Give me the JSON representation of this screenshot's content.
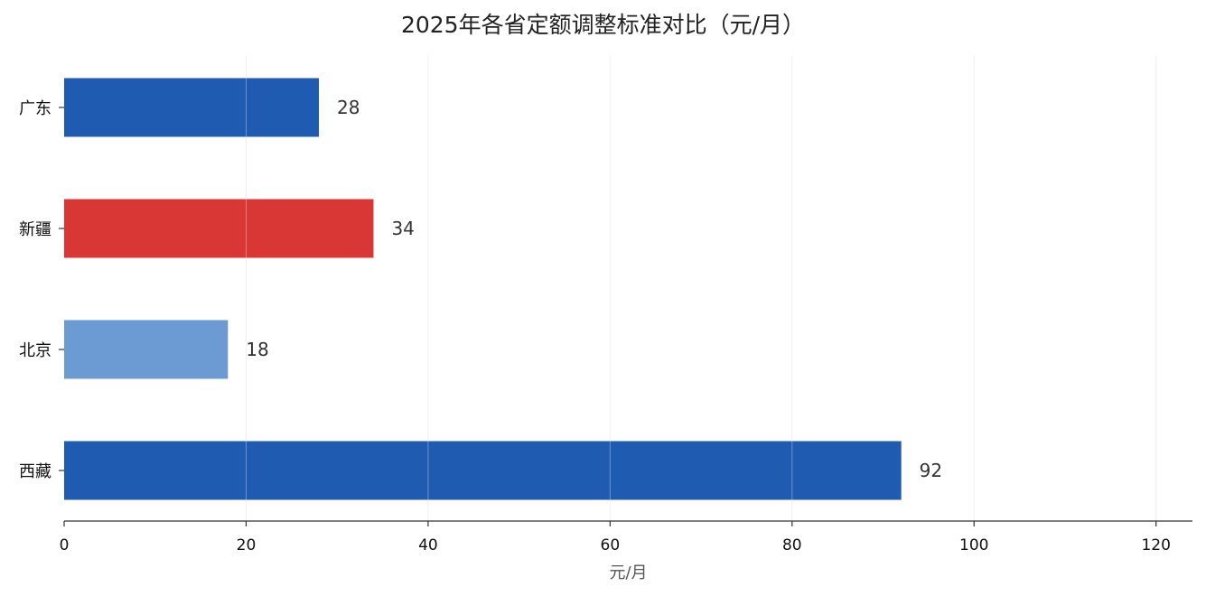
{
  "chart_data": {
    "type": "bar",
    "orientation": "horizontal",
    "title": "2025年各省定额调整标准对比（元/月）",
    "xlabel": "元/月",
    "ylabel": "",
    "categories": [
      "广东",
      "新疆",
      "北京",
      "西藏"
    ],
    "values": [
      28,
      34,
      18,
      92
    ],
    "value_labels": [
      "28",
      "34",
      "18",
      "92"
    ],
    "colors": [
      "#1f5bb0",
      "#d93636",
      "#6c9bd4",
      "#1f5bb0"
    ],
    "xlim": [
      0,
      124
    ],
    "xticks": [
      0,
      20,
      40,
      60,
      80,
      100,
      120
    ],
    "xtick_labels": [
      "0",
      "20",
      "40",
      "60",
      "80",
      "100",
      "120"
    ],
    "grid": "vertical",
    "gridline_color": "#e8e8e8",
    "axis_color": "#333333"
  }
}
